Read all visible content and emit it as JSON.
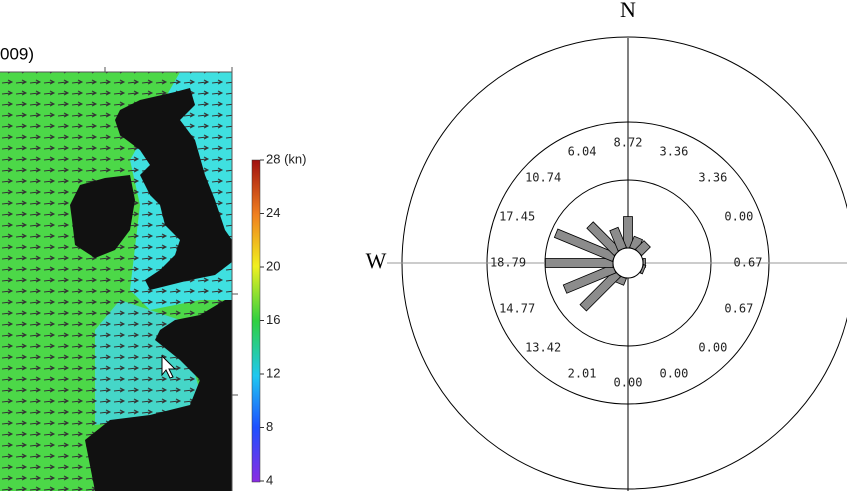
{
  "title": "009)",
  "colorbar": {
    "lim": [
      4,
      28
    ],
    "ticks": [
      {
        "value": 28,
        "label": "28 (kn)"
      },
      24,
      20,
      16,
      12,
      8,
      4
    ]
  },
  "chart_data": {
    "type": "windrose",
    "compass_labels": [
      "N",
      "W"
    ],
    "values": [
      8.72,
      3.36,
      3.36,
      0,
      0.67,
      0.67,
      0,
      0,
      0,
      2.01,
      13.42,
      14.77,
      18.79,
      17.45,
      10.74,
      6.04
    ],
    "value_labels": [
      "8.72",
      "3.36",
      "3.36",
      "0.00",
      "0.67",
      "0.67",
      "0.00",
      "0.00",
      "0.00",
      "2.01",
      "13.42",
      "14.77",
      "18.79",
      "17.45",
      "10.74",
      "6.04"
    ],
    "color": "#8c8c8c"
  }
}
